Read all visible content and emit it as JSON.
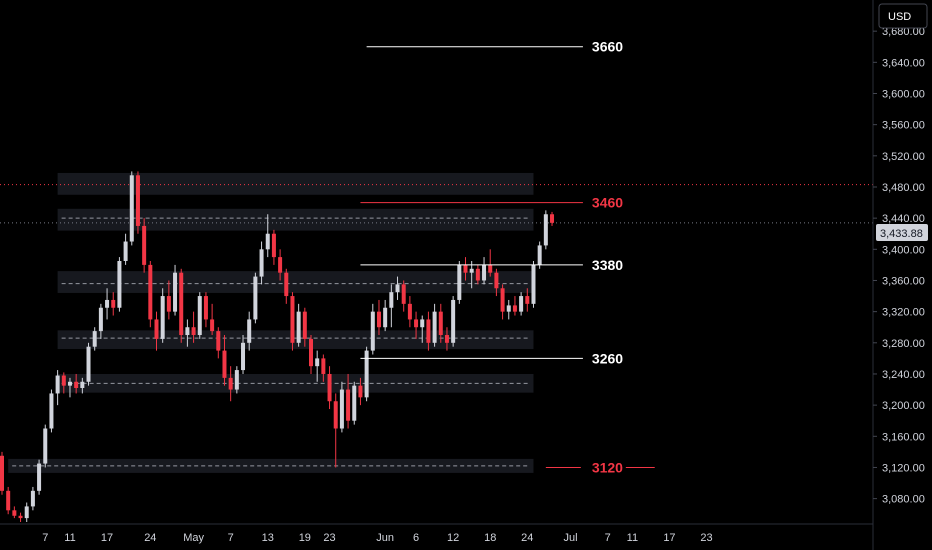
{
  "chart_data": {
    "type": "candlestick",
    "currency_label": "USD",
    "last_price_label": "3,433.88",
    "last_price": 3433.88,
    "ylim": [
      3050,
      3720
    ],
    "y_ticks": [
      {
        "value": 3080,
        "label": "3,080.00"
      },
      {
        "value": 3120,
        "label": "3,120.00"
      },
      {
        "value": 3160,
        "label": "3,160.00"
      },
      {
        "value": 3200,
        "label": "3,200.00"
      },
      {
        "value": 3240,
        "label": "3,240.00"
      },
      {
        "value": 3280,
        "label": "3,280.00"
      },
      {
        "value": 3320,
        "label": "3,320.00"
      },
      {
        "value": 3360,
        "label": "3,360.00"
      },
      {
        "value": 3400,
        "label": "3,400.00"
      },
      {
        "value": 3440,
        "label": "3,440.00"
      },
      {
        "value": 3480,
        "label": "3,480.00"
      },
      {
        "value": 3520,
        "label": "3,520.00"
      },
      {
        "value": 3560,
        "label": "3,560.00"
      },
      {
        "value": 3600,
        "label": "3,600.00"
      },
      {
        "value": 3640,
        "label": "3,640.00"
      },
      {
        "value": 3680,
        "label": "3,680.00"
      }
    ],
    "x_ticks": [
      {
        "day": 7,
        "label": "7"
      },
      {
        "day": 11,
        "label": "11"
      },
      {
        "day": 17,
        "label": "17"
      },
      {
        "day": 24,
        "label": "24"
      },
      {
        "day": 31,
        "label": "May"
      },
      {
        "day": 37,
        "label": "7"
      },
      {
        "day": 43,
        "label": "13"
      },
      {
        "day": 49,
        "label": "19"
      },
      {
        "day": 53,
        "label": "23"
      },
      {
        "day": 62,
        "label": "Jun"
      },
      {
        "day": 67,
        "label": "6"
      },
      {
        "day": 73,
        "label": "12"
      },
      {
        "day": 79,
        "label": "18"
      },
      {
        "day": 85,
        "label": "24"
      },
      {
        "day": 92,
        "label": "Jul"
      },
      {
        "day": 98,
        "label": "7"
      },
      {
        "day": 102,
        "label": "11"
      },
      {
        "day": 108,
        "label": "17"
      },
      {
        "day": 114,
        "label": "23"
      }
    ],
    "zones": [
      {
        "from": 3470,
        "to": 3498,
        "x_start_day": 9,
        "x_end_day": 86,
        "center": null
      },
      {
        "from": 3424,
        "to": 3452,
        "x_start_day": 9,
        "x_end_day": 86,
        "center": 3440
      },
      {
        "from": 3344,
        "to": 3372,
        "x_start_day": 9,
        "x_end_day": 86,
        "center": 3356
      },
      {
        "from": 3272,
        "to": 3296,
        "x_start_day": 9,
        "x_end_day": 86,
        "center": 3286
      },
      {
        "from": 3216,
        "to": 3240,
        "x_start_day": 9,
        "x_end_day": 86,
        "center": 3228
      },
      {
        "from": 3113,
        "to": 3131,
        "x_start_day": 1,
        "x_end_day": 86,
        "center": 3122
      }
    ],
    "levels": [
      {
        "value": 3660,
        "label": "3660",
        "color": "#ffffff",
        "x_start_day": 59,
        "x_end_day": 94
      },
      {
        "value": 3460,
        "label": "3460",
        "color": "#f23645",
        "x_start_day": 58,
        "x_end_day": 94
      },
      {
        "value": 3380,
        "label": "3380",
        "color": "#ffffff",
        "x_start_day": 58,
        "x_end_day": 94
      },
      {
        "value": 3260,
        "label": "3260",
        "color": "#ffffff",
        "x_start_day": 58,
        "x_end_day": 94
      },
      {
        "value": 3120,
        "label": "3120",
        "color": "#f23645",
        "x_start_day": 88,
        "x_end_day": 104
      }
    ],
    "horizontal_dotted": [
      {
        "value": 3483,
        "color": "#f23645"
      },
      {
        "value": 3434,
        "color": "#787b86"
      }
    ],
    "candles": [
      [
        3135,
        3140,
        3085,
        3090
      ],
      [
        3090,
        3095,
        3060,
        3065
      ],
      [
        3065,
        3070,
        3055,
        3058
      ],
      [
        3058,
        3062,
        3050,
        3055
      ],
      [
        3055,
        3075,
        3050,
        3070
      ],
      [
        3070,
        3095,
        3065,
        3090
      ],
      [
        3090,
        3130,
        3085,
        3125
      ],
      [
        3125,
        3175,
        3120,
        3170
      ],
      [
        3170,
        3220,
        3165,
        3215
      ],
      [
        3215,
        3245,
        3200,
        3238
      ],
      [
        3238,
        3242,
        3215,
        3225
      ],
      [
        3225,
        3235,
        3210,
        3230
      ],
      [
        3230,
        3240,
        3215,
        3222
      ],
      [
        3222,
        3235,
        3215,
        3230
      ],
      [
        3230,
        3280,
        3225,
        3275
      ],
      [
        3275,
        3300,
        3270,
        3295
      ],
      [
        3295,
        3330,
        3285,
        3325
      ],
      [
        3325,
        3350,
        3310,
        3335
      ],
      [
        3335,
        3345,
        3315,
        3325
      ],
      [
        3325,
        3390,
        3320,
        3385
      ],
      [
        3385,
        3420,
        3380,
        3410
      ],
      [
        3410,
        3500,
        3405,
        3495
      ],
      [
        3495,
        3500,
        3420,
        3430
      ],
      [
        3430,
        3440,
        3370,
        3380
      ],
      [
        3380,
        3385,
        3300,
        3310
      ],
      [
        3310,
        3320,
        3270,
        3285
      ],
      [
        3285,
        3350,
        3280,
        3340
      ],
      [
        3340,
        3360,
        3310,
        3320
      ],
      [
        3320,
        3380,
        3315,
        3370
      ],
      [
        3370,
        3375,
        3280,
        3290
      ],
      [
        3290,
        3310,
        3275,
        3300
      ],
      [
        3300,
        3320,
        3280,
        3290
      ],
      [
        3290,
        3345,
        3285,
        3340
      ],
      [
        3340,
        3345,
        3300,
        3310
      ],
      [
        3310,
        3330,
        3290,
        3295
      ],
      [
        3295,
        3300,
        3260,
        3270
      ],
      [
        3270,
        3290,
        3225,
        3235
      ],
      [
        3235,
        3250,
        3205,
        3220
      ],
      [
        3220,
        3250,
        3215,
        3245
      ],
      [
        3245,
        3290,
        3240,
        3280
      ],
      [
        3280,
        3320,
        3270,
        3310
      ],
      [
        3310,
        3370,
        3305,
        3365
      ],
      [
        3365,
        3410,
        3355,
        3400
      ],
      [
        3400,
        3445,
        3390,
        3420
      ],
      [
        3420,
        3425,
        3380,
        3390
      ],
      [
        3390,
        3400,
        3360,
        3370
      ],
      [
        3370,
        3375,
        3330,
        3340
      ],
      [
        3340,
        3345,
        3270,
        3280
      ],
      [
        3280,
        3330,
        3275,
        3320
      ],
      [
        3320,
        3325,
        3275,
        3285
      ],
      [
        3285,
        3290,
        3240,
        3250
      ],
      [
        3250,
        3270,
        3230,
        3260
      ],
      [
        3260,
        3265,
        3230,
        3240
      ],
      [
        3240,
        3250,
        3195,
        3205
      ],
      [
        3205,
        3215,
        3120,
        3170
      ],
      [
        3170,
        3230,
        3165,
        3220
      ],
      [
        3220,
        3240,
        3170,
        3180
      ],
      [
        3180,
        3230,
        3175,
        3225
      ],
      [
        3225,
        3235,
        3200,
        3210
      ],
      [
        3210,
        3275,
        3205,
        3270
      ],
      [
        3270,
        3330,
        3265,
        3320
      ],
      [
        3320,
        3335,
        3290,
        3300
      ],
      [
        3300,
        3335,
        3295,
        3325
      ],
      [
        3325,
        3355,
        3300,
        3345
      ],
      [
        3345,
        3365,
        3335,
        3355
      ],
      [
        3355,
        3360,
        3320,
        3330
      ],
      [
        3330,
        3340,
        3300,
        3310
      ],
      [
        3310,
        3320,
        3285,
        3300
      ],
      [
        3300,
        3315,
        3280,
        3310
      ],
      [
        3310,
        3320,
        3270,
        3280
      ],
      [
        3280,
        3330,
        3275,
        3320
      ],
      [
        3320,
        3330,
        3280,
        3290
      ],
      [
        3290,
        3300,
        3270,
        3280
      ],
      [
        3280,
        3340,
        3275,
        3335
      ],
      [
        3335,
        3385,
        3330,
        3380
      ],
      [
        3380,
        3390,
        3360,
        3370
      ],
      [
        3370,
        3385,
        3350,
        3375
      ],
      [
        3375,
        3380,
        3355,
        3360
      ],
      [
        3360,
        3390,
        3355,
        3380
      ],
      [
        3380,
        3400,
        3365,
        3370
      ],
      [
        3370,
        3375,
        3340,
        3350
      ],
      [
        3350,
        3355,
        3310,
        3320
      ],
      [
        3320,
        3335,
        3310,
        3328
      ],
      [
        3328,
        3340,
        3315,
        3320
      ],
      [
        3320,
        3345,
        3315,
        3340
      ],
      [
        3340,
        3350,
        3320,
        3330
      ],
      [
        3330,
        3385,
        3325,
        3380
      ],
      [
        3380,
        3410,
        3375,
        3405
      ],
      [
        3405,
        3450,
        3400,
        3445
      ],
      [
        3445,
        3448,
        3430,
        3434
      ]
    ]
  }
}
